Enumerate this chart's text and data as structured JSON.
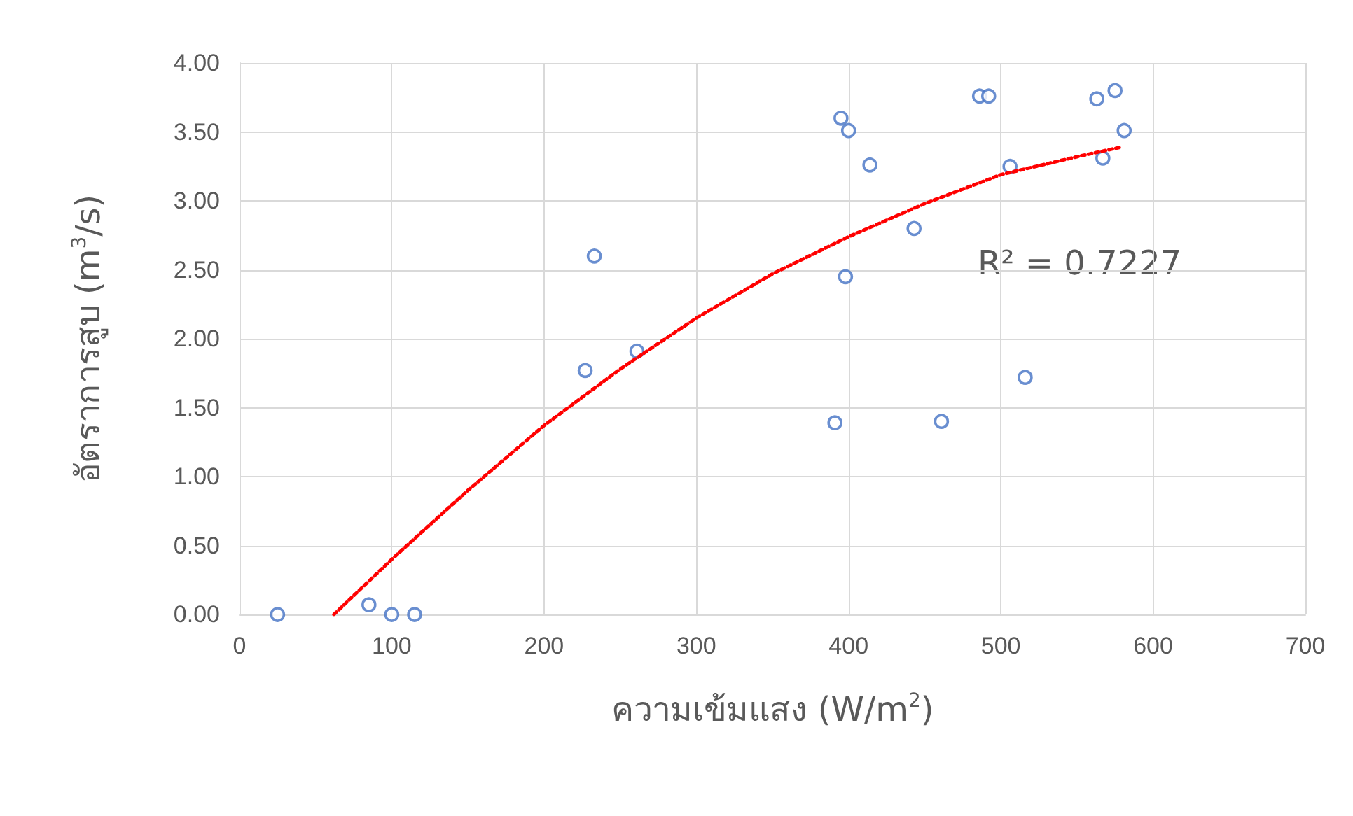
{
  "chart_data": {
    "type": "scatter",
    "xlabel": "ความเข้มแสง (W/m$^{2}$)",
    "ylabel": "อัตราการสูบ (m$^{3}$/s)",
    "xlim": [
      0,
      700
    ],
    "xticks": [
      0,
      100,
      200,
      300,
      400,
      500,
      600,
      700
    ],
    "ylim": [
      0,
      4
    ],
    "yticks": [
      {
        "value": 0,
        "label": "0.00"
      },
      {
        "value": 0.5,
        "label": "0.50"
      },
      {
        "value": 1,
        "label": "1.00"
      },
      {
        "value": 1.5,
        "label": "1.50"
      },
      {
        "value": 2,
        "label": "2.00"
      },
      {
        "value": 2.5,
        "label": "2.50"
      },
      {
        "value": 3,
        "label": "3.00"
      },
      {
        "value": 3.5,
        "label": "3.50"
      },
      {
        "value": 4,
        "label": "4.00"
      }
    ],
    "grid": true,
    "marker": "circle",
    "annotations": [
      "R² = 0.7227"
    ],
    "series": [
      {
        "color": "#4472c4",
        "x": [
          25,
          85,
          100,
          115,
          227,
          233,
          261,
          391,
          395,
          398,
          400,
          414,
          443,
          461,
          486,
          492,
          506,
          516,
          563,
          567,
          575,
          581
        ],
        "values": [
          0,
          0.07,
          0,
          0,
          1.77,
          2.6,
          1.91,
          1.39,
          3.6,
          2.45,
          3.51,
          3.26,
          2.8,
          1.4,
          3.76,
          3.76,
          3.25,
          1.72,
          3.74,
          3.31,
          3.8,
          3.51
        ]
      },
      {
        "type": "line",
        "color": "#ff0000",
        "line_style": "dotted",
        "marker": "none",
        "x": [
          62,
          100,
          150,
          200,
          250,
          300,
          350,
          400,
          450,
          500,
          550,
          579
        ],
        "values": [
          0,
          0.4,
          0.9,
          1.37,
          1.78,
          2.15,
          2.47,
          2.74,
          2.98,
          3.19,
          3.32,
          3.39
        ]
      }
    ]
  }
}
